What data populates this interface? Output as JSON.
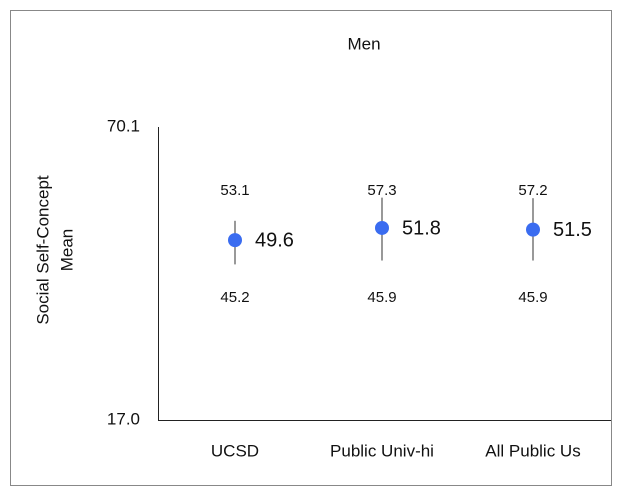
{
  "chart_data": {
    "type": "dot-range",
    "title": "Men",
    "ylabel": [
      "Social Self-Concept",
      "Mean"
    ],
    "categories": [
      "UCSD",
      "Public Univ-hi",
      "All Public Us"
    ],
    "values": [
      49.6,
      51.8,
      51.5
    ],
    "upper": [
      53.1,
      57.3,
      57.2
    ],
    "lower": [
      45.2,
      45.9,
      45.9
    ],
    "color": "#3a6cf0",
    "ylim": [
      17,
      70.1
    ],
    "yticks": [
      {
        "value": 17,
        "label": "17.0"
      },
      70.1
    ],
    "grid": false
  }
}
